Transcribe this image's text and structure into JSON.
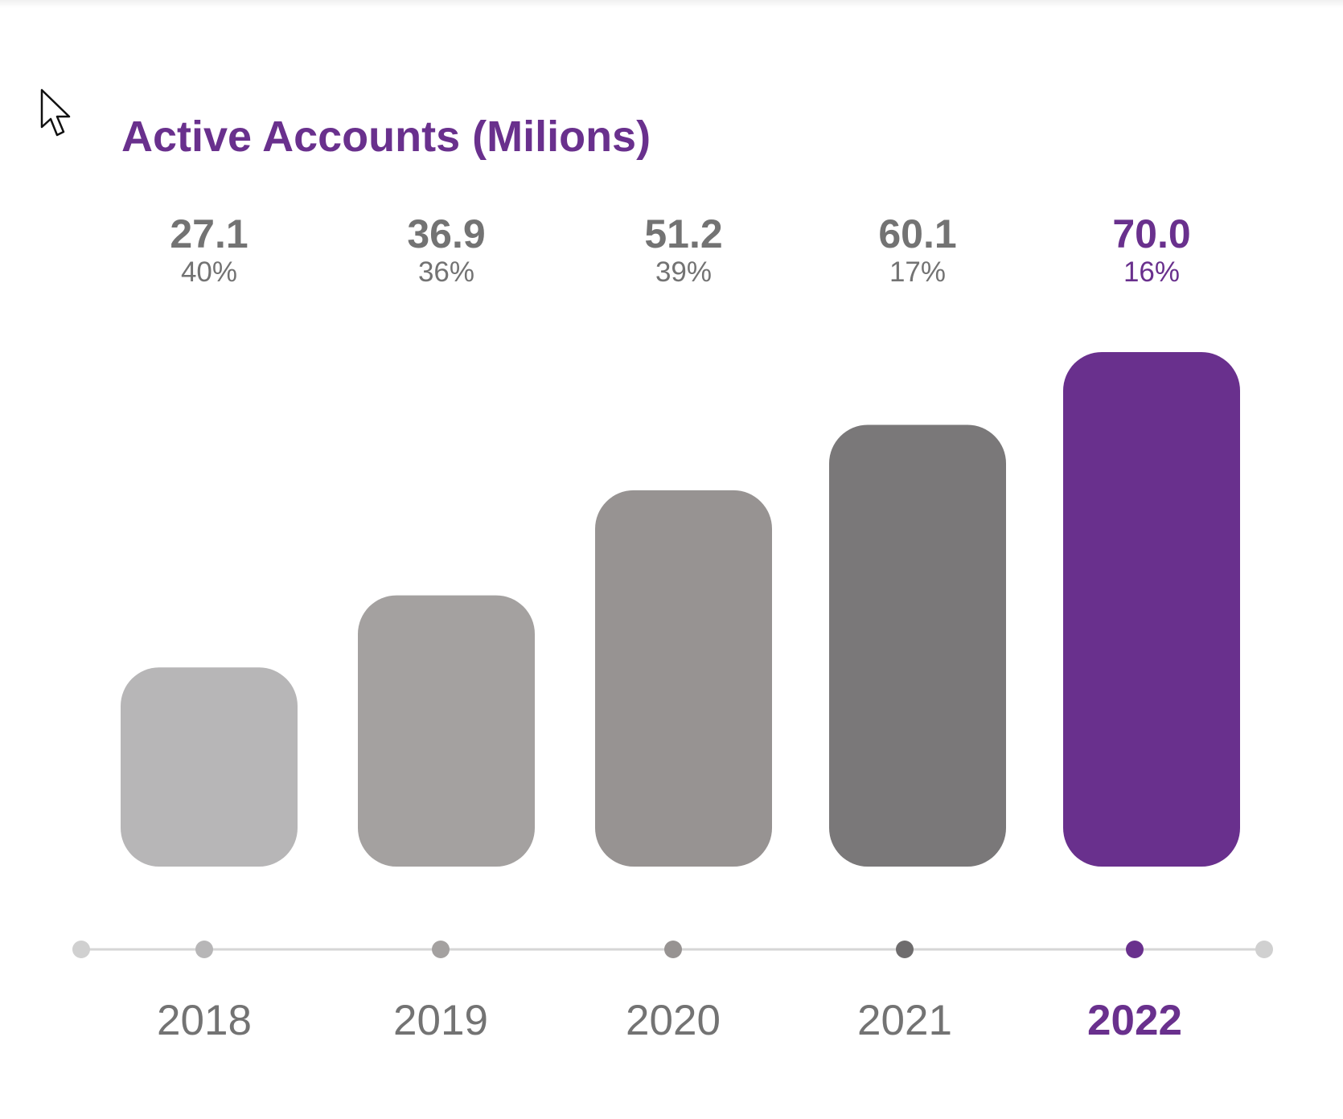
{
  "chart_data": {
    "type": "bar",
    "title": "Active Accounts (Milions)",
    "categories": [
      "2018",
      "2019",
      "2020",
      "2021",
      "2022"
    ],
    "values": [
      27.1,
      36.9,
      51.2,
      60.1,
      70.0
    ],
    "value_labels": [
      "27.1",
      "36.9",
      "51.2",
      "60.1",
      "70.0"
    ],
    "growth_labels": [
      "40%",
      "36%",
      "39%",
      "17%",
      "16%"
    ],
    "ylim": [
      0,
      70.0
    ],
    "grid": false,
    "highlight_index": 4,
    "bar_colors": [
      "#b7b6b7",
      "#a4a1a0",
      "#979392",
      "#7a7879",
      "#69308d"
    ],
    "dot_colors": [
      "#b7b6b7",
      "#a4a1a0",
      "#979392",
      "#6e6c6d",
      "#69308d"
    ],
    "label_color": "#737373",
    "highlight_color": "#69308d",
    "axis_line_color": "#d6d6d6",
    "axis_end_dot_color": "#d0d0d0"
  },
  "cursor": {
    "icon": "mouse-pointer-icon"
  }
}
